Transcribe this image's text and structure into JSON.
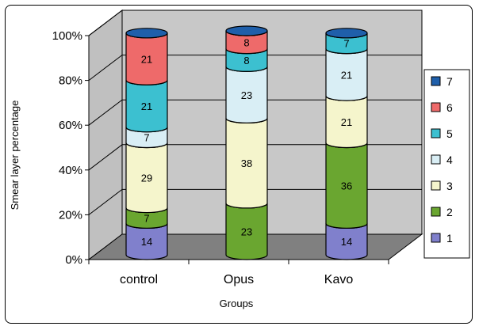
{
  "chart_data": {
    "type": "bar",
    "stacked": true,
    "percent_stacked": true,
    "three_d": true,
    "title": "",
    "xlabel": "Groups",
    "ylabel": "Smear layer percentage",
    "categories": [
      "control",
      "Opus",
      "Kavo"
    ],
    "yticks": [
      "0%",
      "20%",
      "40%",
      "60%",
      "80%",
      "100%"
    ],
    "ylim": [
      0,
      100
    ],
    "grid": true,
    "legend_position": "right",
    "series": [
      {
        "name": "1",
        "color": "#8080cc",
        "values": [
          14,
          0,
          14
        ]
      },
      {
        "name": "2",
        "color": "#6aa630",
        "values": [
          7,
          23,
          36
        ]
      },
      {
        "name": "3",
        "color": "#f5f5cc",
        "values": [
          29,
          38,
          21
        ]
      },
      {
        "name": "4",
        "color": "#d9eef5",
        "values": [
          7,
          23,
          21
        ]
      },
      {
        "name": "5",
        "color": "#3cc0d0",
        "values": [
          21,
          8,
          7
        ]
      },
      {
        "name": "6",
        "color": "#ee6a6a",
        "values": [
          21,
          8,
          0
        ]
      },
      {
        "name": "7",
        "color": "#1f5faa",
        "values": [
          0,
          0,
          0
        ]
      }
    ]
  }
}
